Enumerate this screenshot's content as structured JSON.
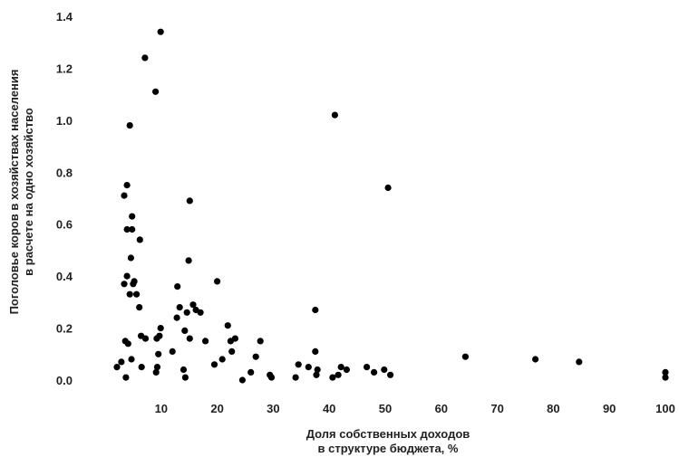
{
  "chart_data": {
    "type": "scatter",
    "xlabel_lines": [
      "Доля собственных доходов",
      "в структуре бюджета, %"
    ],
    "ylabel_lines": [
      "Поголовье коров в хозяйствах населения",
      "в расчете на одно хозяйство"
    ],
    "xlim": [
      0,
      100
    ],
    "ylim": [
      0,
      1.4
    ],
    "x_ticks": [
      10,
      20,
      30,
      40,
      50,
      60,
      70,
      80,
      90,
      100
    ],
    "y_ticks": [
      0.0,
      0.2,
      0.4,
      0.6,
      0.8,
      1.0,
      1.2,
      1.4
    ],
    "x_tick_labels": [
      "10",
      "20",
      "30",
      "40",
      "50",
      "60",
      "70",
      "80",
      "90",
      "100"
    ],
    "y_tick_labels": [
      "0.0",
      "0.2",
      "0.4",
      "0.6",
      "0.8",
      "1.0",
      "1.2",
      "1.4"
    ],
    "grid": false,
    "marker_color": "#000000",
    "points": [
      {
        "x": 9.9,
        "y": 1.34
      },
      {
        "x": 7.1,
        "y": 1.24
      },
      {
        "x": 9.0,
        "y": 1.11
      },
      {
        "x": 4.4,
        "y": 0.98
      },
      {
        "x": 3.9,
        "y": 0.75
      },
      {
        "x": 3.4,
        "y": 0.71
      },
      {
        "x": 15.1,
        "y": 0.69
      },
      {
        "x": 4.8,
        "y": 0.63
      },
      {
        "x": 3.9,
        "y": 0.58
      },
      {
        "x": 4.8,
        "y": 0.58
      },
      {
        "x": 6.2,
        "y": 0.54
      },
      {
        "x": 4.6,
        "y": 0.47
      },
      {
        "x": 14.9,
        "y": 0.46
      },
      {
        "x": 3.9,
        "y": 0.4
      },
      {
        "x": 5.2,
        "y": 0.38
      },
      {
        "x": 3.4,
        "y": 0.37
      },
      {
        "x": 5.0,
        "y": 0.37
      },
      {
        "x": 12.9,
        "y": 0.36
      },
      {
        "x": 4.4,
        "y": 0.33
      },
      {
        "x": 5.6,
        "y": 0.33
      },
      {
        "x": 6.1,
        "y": 0.28
      },
      {
        "x": 15.7,
        "y": 0.29
      },
      {
        "x": 13.3,
        "y": 0.28
      },
      {
        "x": 16.2,
        "y": 0.27
      },
      {
        "x": 14.6,
        "y": 0.26
      },
      {
        "x": 17.0,
        "y": 0.26
      },
      {
        "x": 12.8,
        "y": 0.24
      },
      {
        "x": 20.0,
        "y": 0.38
      },
      {
        "x": 37.5,
        "y": 0.27
      },
      {
        "x": 9.9,
        "y": 0.2
      },
      {
        "x": 14.2,
        "y": 0.19
      },
      {
        "x": 9.7,
        "y": 0.17
      },
      {
        "x": 9.2,
        "y": 0.16
      },
      {
        "x": 6.4,
        "y": 0.17
      },
      {
        "x": 7.2,
        "y": 0.16
      },
      {
        "x": 3.6,
        "y": 0.15
      },
      {
        "x": 4.1,
        "y": 0.14
      },
      {
        "x": 15.1,
        "y": 0.16
      },
      {
        "x": 17.9,
        "y": 0.15
      },
      {
        "x": 21.9,
        "y": 0.21
      },
      {
        "x": 22.4,
        "y": 0.15
      },
      {
        "x": 23.2,
        "y": 0.16
      },
      {
        "x": 27.7,
        "y": 0.15
      },
      {
        "x": 22.6,
        "y": 0.11
      },
      {
        "x": 9.5,
        "y": 0.1
      },
      {
        "x": 12.0,
        "y": 0.11
      },
      {
        "x": 37.5,
        "y": 0.11
      },
      {
        "x": 2.9,
        "y": 0.07
      },
      {
        "x": 4.7,
        "y": 0.08
      },
      {
        "x": 20.9,
        "y": 0.08
      },
      {
        "x": 26.9,
        "y": 0.09
      },
      {
        "x": 64.3,
        "y": 0.09
      },
      {
        "x": 76.8,
        "y": 0.08
      },
      {
        "x": 84.6,
        "y": 0.07
      },
      {
        "x": 2.1,
        "y": 0.05
      },
      {
        "x": 6.5,
        "y": 0.05
      },
      {
        "x": 9.3,
        "y": 0.05
      },
      {
        "x": 9.1,
        "y": 0.03
      },
      {
        "x": 14.0,
        "y": 0.04
      },
      {
        "x": 19.5,
        "y": 0.06
      },
      {
        "x": 34.5,
        "y": 0.06
      },
      {
        "x": 36.3,
        "y": 0.05
      },
      {
        "x": 37.9,
        "y": 0.04
      },
      {
        "x": 42.1,
        "y": 0.05
      },
      {
        "x": 43.1,
        "y": 0.04
      },
      {
        "x": 46.7,
        "y": 0.05
      },
      {
        "x": 48.0,
        "y": 0.03
      },
      {
        "x": 49.8,
        "y": 0.04
      },
      {
        "x": 100.0,
        "y": 0.03
      },
      {
        "x": 3.7,
        "y": 0.01
      },
      {
        "x": 14.3,
        "y": 0.01
      },
      {
        "x": 24.5,
        "y": 0.0
      },
      {
        "x": 26.0,
        "y": 0.03
      },
      {
        "x": 29.4,
        "y": 0.02
      },
      {
        "x": 29.7,
        "y": 0.01
      },
      {
        "x": 34.0,
        "y": 0.01
      },
      {
        "x": 37.7,
        "y": 0.02
      },
      {
        "x": 40.6,
        "y": 0.01
      },
      {
        "x": 41.6,
        "y": 0.02
      },
      {
        "x": 50.9,
        "y": 0.02
      },
      {
        "x": 100.0,
        "y": 0.01
      },
      {
        "x": 41.0,
        "y": 1.02
      },
      {
        "x": 50.5,
        "y": 0.74
      }
    ]
  }
}
